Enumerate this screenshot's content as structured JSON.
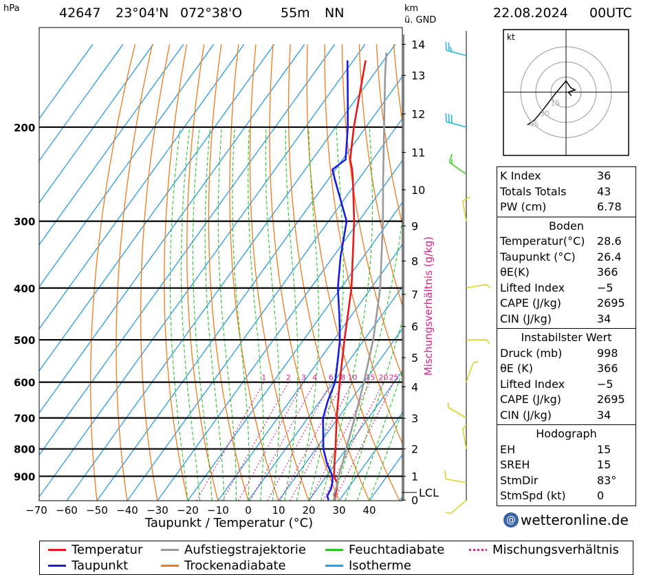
{
  "header": {
    "unit_pressure": "hPa",
    "station": "42647",
    "lat": "23°04'N",
    "lon": "072°38'O",
    "elevation": "55m",
    "nn": "NN",
    "km_label": "km",
    "gnd_label": "ü. GND",
    "datetime": "22.08.2024",
    "time": "00UTC"
  },
  "chart_data": {
    "type": "line",
    "xlabel": "Taupunkt / Temperatur (°C)",
    "ylabel": "Mischungsverhältnis (g/kg)",
    "x_ticks": [
      "−70",
      "−60",
      "−50",
      "−40",
      "−30",
      "−20",
      "−10",
      "0",
      "10",
      "20",
      "30",
      "40"
    ],
    "pressure_ticks": [
      "200",
      "300",
      "400",
      "500",
      "600",
      "700",
      "800",
      "900"
    ],
    "km_ticks": [
      "0",
      "1",
      "2",
      "3",
      "4",
      "5",
      "6",
      "7",
      "8",
      "9",
      "10",
      "11",
      "12",
      "13",
      "14"
    ],
    "lcl_label": "LCL",
    "mixing_ratio_labels": [
      "1",
      "2",
      "3",
      "4",
      "6",
      "8",
      "10",
      "15",
      "20",
      "25"
    ],
    "series": [
      {
        "name": "Temperatur",
        "color": "#e8191a",
        "values": [
          [
            998,
            28.6
          ],
          [
            980,
            27.5
          ],
          [
            950,
            26.5
          ],
          [
            925,
            25
          ],
          [
            900,
            22.5
          ],
          [
            850,
            19.5
          ],
          [
            800,
            16.5
          ],
          [
            700,
            9.5
          ],
          [
            600,
            2.0
          ],
          [
            500,
            -6.5
          ],
          [
            400,
            -16.5
          ],
          [
            300,
            -31.5
          ],
          [
            250,
            -42
          ],
          [
            240,
            -44.5
          ],
          [
            230,
            -47.5
          ],
          [
            200,
            -54
          ],
          [
            150,
            -66
          ]
        ]
      },
      {
        "name": "Taupunkt",
        "color": "#1a1ae0",
        "values": [
          [
            998,
            26.4
          ],
          [
            980,
            25
          ],
          [
            950,
            24.5
          ],
          [
            925,
            23.5
          ],
          [
            900,
            22
          ],
          [
            850,
            17
          ],
          [
            800,
            12.5
          ],
          [
            700,
            5
          ],
          [
            650,
            2.5
          ],
          [
            600,
            0.5
          ],
          [
            550,
            -3.5
          ],
          [
            500,
            -8
          ],
          [
            450,
            -14
          ],
          [
            400,
            -21
          ],
          [
            350,
            -27.5
          ],
          [
            300,
            -34
          ],
          [
            250,
            -48
          ],
          [
            240,
            -51
          ],
          [
            230,
            -49
          ],
          [
            200,
            -56
          ],
          [
            170,
            -65
          ],
          [
            150,
            -72
          ]
        ]
      },
      {
        "name": "Aufstiegstrajektorie",
        "color": "#9a9a9a",
        "values": [
          [
            998,
            28.6
          ],
          [
            975,
            26.8
          ],
          [
            950,
            26.2
          ],
          [
            900,
            24
          ],
          [
            850,
            22.2
          ],
          [
            800,
            20
          ],
          [
            700,
            15.5
          ],
          [
            600,
            10
          ],
          [
            500,
            3
          ],
          [
            400,
            -7
          ],
          [
            300,
            -22
          ],
          [
            250,
            -32
          ],
          [
            200,
            -44
          ],
          [
            160,
            -56
          ],
          [
            145,
            -61
          ]
        ]
      }
    ],
    "wind_barbs": [
      {
        "p": 147,
        "dir": 285,
        "kt": 25,
        "color": "#2bb8d6"
      },
      {
        "p": 200,
        "dir": 285,
        "kt": 30,
        "color": "#2bb8d6"
      },
      {
        "p": 245,
        "dir": 305,
        "kt": 15,
        "color": "#4ad12a"
      },
      {
        "p": 300,
        "dir": 350,
        "kt": 10,
        "color": "#d6d62a"
      },
      {
        "p": 400,
        "dir": 80,
        "kt": 5,
        "color": "#d6d62a"
      },
      {
        "p": 500,
        "dir": 90,
        "kt": 5,
        "color": "#d6d62a"
      },
      {
        "p": 600,
        "dir": 20,
        "kt": 5,
        "color": "#d6d62a"
      },
      {
        "p": 700,
        "dir": 300,
        "kt": 5,
        "color": "#d6d62a"
      },
      {
        "p": 800,
        "dir": 350,
        "kt": 5,
        "color": "#d6d62a"
      },
      {
        "p": 925,
        "dir": 280,
        "kt": 10,
        "color": "#d6d62a"
      },
      {
        "p": 998,
        "dir": 230,
        "kt": 5,
        "color": "#d6d62a"
      }
    ],
    "hodograph": {
      "unit": "kt",
      "rings": [
        "15",
        "30",
        "45"
      ],
      "points": [
        [
          -0.85,
          0.72
        ],
        [
          -0.7,
          0.62
        ],
        [
          -0.5,
          0.38
        ],
        [
          -0.25,
          0.05
        ],
        [
          0,
          -0.25
        ],
        [
          0.1,
          -0.1
        ],
        [
          0.2,
          -0.05
        ],
        [
          0.05,
          0.0
        ],
        [
          0.12,
          0.08
        ]
      ]
    }
  },
  "indices": {
    "k_index": {
      "label": "K Index",
      "value": "36"
    },
    "totals": {
      "label": "Totals Totals",
      "value": "43"
    },
    "pw": {
      "label": "PW (cm)",
      "value": "6.78"
    }
  },
  "boden": {
    "title": "Boden",
    "temperatur": {
      "label": "Temperatur(°C)",
      "value": "28.6"
    },
    "taupunkt": {
      "label": "Taupunkt (°C)",
      "value": "26.4"
    },
    "theta_e": {
      "label": "θE(K)",
      "value": "366"
    },
    "lifted": {
      "label": "Lifted Index",
      "value": "−5"
    },
    "cape": {
      "label": "CAPE (J/kg)",
      "value": "2695"
    },
    "cin": {
      "label": "CIN (J/kg)",
      "value": "34"
    }
  },
  "instabil": {
    "title": "Instabilster Wert",
    "druck": {
      "label": "Druck (mb)",
      "value": "998"
    },
    "theta_e": {
      "label": "θE (K)",
      "value": "366"
    },
    "lifted": {
      "label": "Lifted Index",
      "value": "−5"
    },
    "cape": {
      "label": "CAPE (J/kg)",
      "value": "2695"
    },
    "cin": {
      "label": "CIN (J/kg)",
      "value": "34"
    }
  },
  "hodo_box": {
    "title": "Hodograph",
    "eh": {
      "label": "EH",
      "value": "15"
    },
    "sreh": {
      "label": "SREH",
      "value": "15"
    },
    "stmdir": {
      "label": "StmDir",
      "value": "83°"
    },
    "stmspd": {
      "label": "StmSpd (kt)",
      "value": "0"
    }
  },
  "brand": "wetteronline.de",
  "legend": {
    "temperatur": "Temperatur",
    "aufstieg": "Aufstiegstrajektorie",
    "feucht": "Feuchtadiabate",
    "misch": "Mischungsverhältnis",
    "taupunkt": "Taupunkt",
    "trocken": "Trockenadiabate",
    "isotherme": "Isotherme"
  },
  "colors": {
    "temperatur": "#e8191a",
    "taupunkt": "#1a1ae0",
    "aufstieg": "#9a9a9a",
    "feucht": "#22c722",
    "trocken": "#f07a1a",
    "isotherme": "#2a9ae6",
    "misch": "#e0208a"
  }
}
